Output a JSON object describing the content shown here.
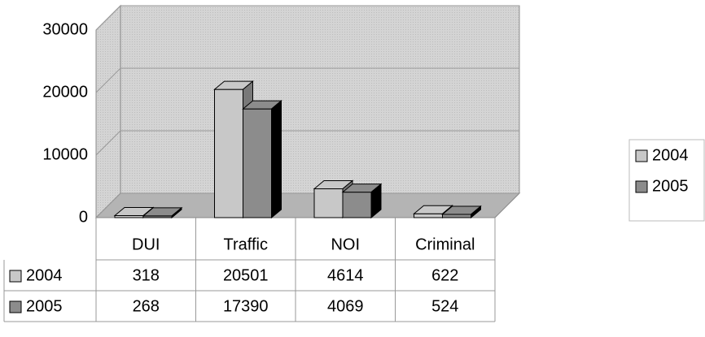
{
  "chart_data": {
    "type": "bar3d",
    "categories": [
      "DUI",
      "Traffic",
      "NOI",
      "Criminal"
    ],
    "series": [
      {
        "name": "2004",
        "color": "#c8c8c8",
        "values": [
          318,
          20501,
          4614,
          622
        ]
      },
      {
        "name": "2005",
        "color": "#8c8c8c",
        "values": [
          268,
          17390,
          4069,
          524
        ]
      }
    ],
    "ylim": [
      0,
      30000
    ],
    "yticks": [
      0,
      10000,
      20000,
      30000
    ],
    "grid": true,
    "legend": "right",
    "data_table": true
  }
}
